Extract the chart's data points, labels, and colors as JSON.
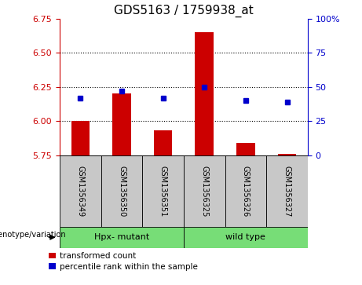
{
  "title": "GDS5163 / 1759938_at",
  "samples": [
    "GSM1356349",
    "GSM1356350",
    "GSM1356351",
    "GSM1356325",
    "GSM1356326",
    "GSM1356327"
  ],
  "group_info": [
    {
      "label": "Hpx- mutant",
      "start": 0,
      "end": 2
    },
    {
      "label": "wild type",
      "start": 3,
      "end": 5
    }
  ],
  "red_values": [
    6.0,
    6.2,
    5.93,
    6.65,
    5.84,
    5.76
  ],
  "blue_values": [
    6.17,
    6.22,
    6.17,
    6.25,
    6.15,
    6.14
  ],
  "ylim_left": [
    5.75,
    6.75
  ],
  "ylim_right": [
    0,
    100
  ],
  "yticks_left": [
    5.75,
    6.0,
    6.25,
    6.5,
    6.75
  ],
  "yticks_right": [
    0,
    25,
    50,
    75,
    100
  ],
  "ytick_labels_right": [
    "0",
    "25",
    "50",
    "75",
    "100%"
  ],
  "grid_values": [
    6.0,
    6.25,
    6.5
  ],
  "bar_bottom": 5.75,
  "bar_color": "#cc0000",
  "dot_color": "#0000cc",
  "group_color": "#77dd77",
  "sample_box_color": "#c8c8c8",
  "legend_red": "transformed count",
  "legend_blue": "percentile rank within the sample",
  "left_label_color": "#cc0000",
  "right_label_color": "#0000cc",
  "title_fontsize": 11,
  "tick_fontsize": 8,
  "sample_fontsize": 7,
  "group_fontsize": 8,
  "genotype_label": "genotype/variation",
  "genotype_fontsize": 8
}
